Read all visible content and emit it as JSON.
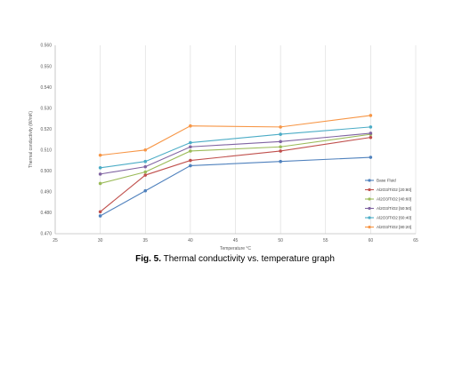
{
  "chart_data": {
    "type": "line",
    "title": "",
    "xlabel": "Temperature °C",
    "ylabel": "Thermal conductivity (W/mK)",
    "xlim": [
      25,
      65
    ],
    "ylim": [
      0.47,
      0.56
    ],
    "xticks": [
      25,
      30,
      35,
      40,
      45,
      50,
      55,
      60,
      65
    ],
    "yticks": [
      0.47,
      0.48,
      0.49,
      0.5,
      0.51,
      0.52,
      0.53,
      0.54,
      0.55,
      0.56
    ],
    "xtick_labels": [
      "25",
      "30",
      "35",
      "40",
      "45",
      "50",
      "55",
      "60",
      "65"
    ],
    "ytick_labels": [
      "0.470",
      "0.480",
      "0.490",
      "0.500",
      "0.510",
      "0.520",
      "0.530",
      "0.540",
      "0.550",
      "0.560"
    ],
    "grid": "vertical",
    "legend_position": "right",
    "x": [
      30,
      35,
      40,
      50,
      60
    ],
    "series": [
      {
        "name": "Base Fluid",
        "color": "#4F81BD",
        "values": [
          0.4785,
          0.4905,
          0.5025,
          0.5045,
          0.5065
        ]
      },
      {
        "name": "Al2O3/TiO2 [20:80]",
        "color": "#C0504D",
        "values": [
          0.4805,
          0.498,
          0.505,
          0.5095,
          0.516
        ]
      },
      {
        "name": "Al2O3/TiO2 [40:60]",
        "color": "#9BBB59",
        "values": [
          0.494,
          0.4995,
          0.5095,
          0.5115,
          0.5175
        ]
      },
      {
        "name": "Al2O3/TiO2 [50:50]",
        "color": "#8064A2",
        "values": [
          0.4985,
          0.502,
          0.5115,
          0.514,
          0.518
        ]
      },
      {
        "name": "Al2O3/TiO2 [60:40]",
        "color": "#4BACC6",
        "values": [
          0.5015,
          0.5045,
          0.5135,
          0.5175,
          0.521
        ]
      },
      {
        "name": "Al2O3/TiO2 [80:20]",
        "color": "#F79646",
        "values": [
          0.5075,
          0.51,
          0.5215,
          0.521,
          0.5265
        ]
      }
    ]
  },
  "caption": {
    "label": "Fig. 5.",
    "text": " Thermal conductivity vs. temperature graph"
  }
}
